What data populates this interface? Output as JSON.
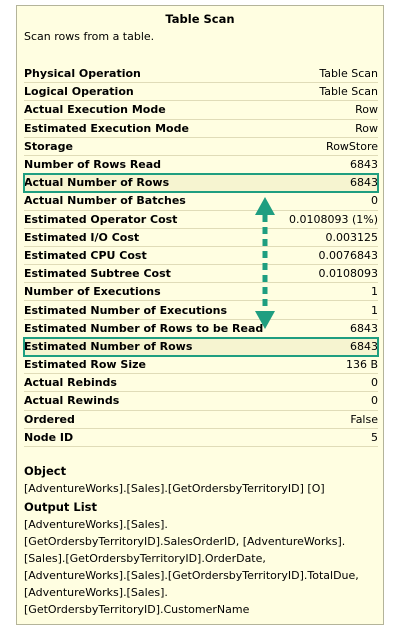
{
  "tooltip": {
    "title": "Table Scan",
    "description": "Scan rows from a table.",
    "properties": [
      {
        "label": "Physical Operation",
        "value": "Table Scan",
        "highlight": false
      },
      {
        "label": "Logical Operation",
        "value": "Table Scan",
        "highlight": false
      },
      {
        "label": "Actual Execution Mode",
        "value": "Row",
        "highlight": false
      },
      {
        "label": "Estimated Execution Mode",
        "value": "Row",
        "highlight": false
      },
      {
        "label": "Storage",
        "value": "RowStore",
        "highlight": false
      },
      {
        "label": "Number of Rows Read",
        "value": "6843",
        "highlight": false
      },
      {
        "label": "Actual Number of Rows",
        "value": "6843",
        "highlight": true
      },
      {
        "label": "Actual Number of Batches",
        "value": "0",
        "highlight": false
      },
      {
        "label": "Estimated Operator Cost",
        "value": "0.0108093 (1%)",
        "highlight": false
      },
      {
        "label": "Estimated I/O Cost",
        "value": "0.003125",
        "highlight": false
      },
      {
        "label": "Estimated CPU Cost",
        "value": "0.0076843",
        "highlight": false
      },
      {
        "label": "Estimated Subtree Cost",
        "value": "0.0108093",
        "highlight": false
      },
      {
        "label": "Number of Executions",
        "value": "1",
        "highlight": false
      },
      {
        "label": "Estimated Number of Executions",
        "value": "1",
        "highlight": false
      },
      {
        "label": "Estimated Number of Rows to be Read",
        "value": "6843",
        "highlight": false
      },
      {
        "label": "Estimated Number of Rows",
        "value": "6843",
        "highlight": true
      },
      {
        "label": "Estimated Row Size",
        "value": "136 B",
        "highlight": false
      },
      {
        "label": "Actual Rebinds",
        "value": "0",
        "highlight": false
      },
      {
        "label": "Actual Rewinds",
        "value": "0",
        "highlight": false
      },
      {
        "label": "Ordered",
        "value": "False",
        "highlight": false
      },
      {
        "label": "Node ID",
        "value": "5",
        "highlight": false
      }
    ],
    "object": {
      "heading": "Object",
      "value": "[AdventureWorks].[Sales].[GetOrdersbyTerritoryID] [O]"
    },
    "output_list": {
      "heading": "Output List",
      "lines": [
        "[AdventureWorks].[Sales].",
        "[GetOrdersbyTerritoryID].SalesOrderID, [AdventureWorks].",
        "[Sales].[GetOrdersbyTerritoryID].OrderDate,",
        "[AdventureWorks].[Sales].[GetOrdersbyTerritoryID].TotalDue,",
        "[AdventureWorks].[Sales].",
        "[GetOrdersbyTerritoryID].CustomerName"
      ]
    }
  },
  "colors": {
    "background": "#fffee1",
    "highlight_box": "#1f9e80",
    "arrow": "#1f9e80"
  },
  "annotation": {
    "icon": "double-headed-vertical-arrow-icon"
  }
}
